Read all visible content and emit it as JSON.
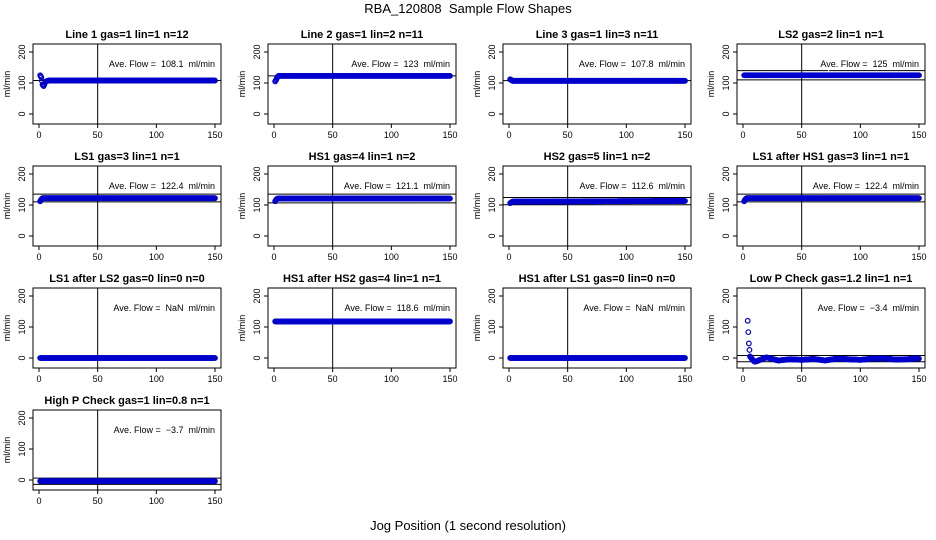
{
  "figure": {
    "title": "RBA_120808  Sample Flow Shapes",
    "x_caption": "Jog Position (1 second resolution)"
  },
  "colors": {
    "points": "#0000cc",
    "axis": "#000000"
  },
  "chart_data": [
    {
      "type": "scatter",
      "title": "Line 1 gas=1 lin=1 n=12",
      "annotation": "Ave. Flow =  108.1  ml/min",
      "ylabel": "ml/min",
      "xlim": [
        0,
        150
      ],
      "ylim": [
        0,
        200
      ],
      "xticks": [
        0,
        50,
        100,
        150
      ],
      "yticks": [
        0,
        100,
        200
      ],
      "vline_x": 50,
      "hlines": [
        108.1
      ],
      "series": [
        {
          "x": [
            1,
            2,
            3,
            4,
            5,
            6,
            8,
            10,
            12,
            15,
            20,
            150
          ],
          "y": [
            125,
            118,
            95,
            90,
            100,
            105,
            108,
            108,
            108,
            108,
            108,
            108
          ]
        }
      ]
    },
    {
      "type": "scatter",
      "title": "Line 2 gas=1 lin=2 n=11",
      "annotation": "Ave. Flow =  123  ml/min",
      "ylabel": "ml/min",
      "xlim": [
        0,
        150
      ],
      "ylim": [
        0,
        200
      ],
      "xticks": [
        0,
        50,
        100,
        150
      ],
      "yticks": [
        0,
        100,
        200
      ],
      "vline_x": 50,
      "hlines": [
        123
      ],
      "series": [
        {
          "x": [
            1,
            2,
            3,
            4,
            6,
            150
          ],
          "y": [
            105,
            112,
            120,
            123,
            123,
            123
          ]
        }
      ]
    },
    {
      "type": "scatter",
      "title": "Line 3 gas=1 lin=3 n=11",
      "annotation": "Ave. Flow =  107.8  ml/min",
      "ylabel": "ml/min",
      "xlim": [
        0,
        150
      ],
      "ylim": [
        0,
        200
      ],
      "xticks": [
        0,
        50,
        100,
        150
      ],
      "yticks": [
        0,
        100,
        200
      ],
      "vline_x": 50,
      "hlines": [
        107.8
      ],
      "series": [
        {
          "x": [
            1,
            3,
            150
          ],
          "y": [
            112,
            107,
            107
          ]
        }
      ]
    },
    {
      "type": "scatter",
      "title": "LS2 gas=2 lin=1 n=1",
      "annotation": "Ave. Flow =  125  ml/min",
      "ylabel": "ml/min",
      "xlim": [
        0,
        150
      ],
      "ylim": [
        0,
        200
      ],
      "xticks": [
        0,
        50,
        100,
        150
      ],
      "yticks": [
        0,
        100,
        200
      ],
      "vline_x": 50,
      "hlines": [
        140,
        110
      ],
      "series": [
        {
          "x": [
            1,
            150
          ],
          "y": [
            125,
            125
          ]
        }
      ]
    },
    {
      "type": "scatter",
      "title": "LS1 gas=3 lin=1 n=1",
      "annotation": "Ave. Flow =  122.4  ml/min",
      "ylabel": "ml/min",
      "xlim": [
        0,
        150
      ],
      "ylim": [
        0,
        200
      ],
      "xticks": [
        0,
        50,
        100,
        150
      ],
      "yticks": [
        0,
        100,
        200
      ],
      "vline_x": 50,
      "hlines": [
        135,
        110
      ],
      "series": [
        {
          "x": [
            1,
            2,
            3,
            150
          ],
          "y": [
            112,
            118,
            122,
            122
          ]
        }
      ]
    },
    {
      "type": "scatter",
      "title": "HS1 gas=4 lin=1 n=2",
      "annotation": "Ave. Flow =  121.1  ml/min",
      "ylabel": "ml/min",
      "xlim": [
        0,
        150
      ],
      "ylim": [
        0,
        200
      ],
      "xticks": [
        0,
        50,
        100,
        150
      ],
      "yticks": [
        0,
        100,
        200
      ],
      "vline_x": 50,
      "hlines": [
        135,
        107
      ],
      "series": [
        {
          "x": [
            1,
            2,
            3,
            150
          ],
          "y": [
            112,
            118,
            121,
            121
          ]
        }
      ]
    },
    {
      "type": "scatter",
      "title": "HS2 gas=5 lin=1 n=2",
      "annotation": "Ave. Flow =  112.6  ml/min",
      "ylabel": "ml/min",
      "xlim": [
        0,
        150
      ],
      "ylim": [
        0,
        200
      ],
      "xticks": [
        0,
        50,
        100,
        150
      ],
      "yticks": [
        0,
        100,
        200
      ],
      "vline_x": 50,
      "hlines": [
        124,
        101
      ],
      "series": [
        {
          "x": [
            1,
            3,
            150
          ],
          "y": [
            106,
            111,
            113
          ]
        }
      ]
    },
    {
      "type": "scatter",
      "title": "LS1 after HS1 gas=3 lin=1 n=1",
      "annotation": "Ave. Flow =  122.4  ml/min",
      "ylabel": "ml/min",
      "xlim": [
        0,
        150
      ],
      "ylim": [
        0,
        200
      ],
      "xticks": [
        0,
        50,
        100,
        150
      ],
      "yticks": [
        0,
        100,
        200
      ],
      "vline_x": 50,
      "hlines": [
        135,
        110
      ],
      "series": [
        {
          "x": [
            1,
            2,
            3,
            150
          ],
          "y": [
            112,
            118,
            122,
            122
          ]
        }
      ]
    },
    {
      "type": "scatter",
      "title": "LS1 after LS2 gas=0 lin=0 n=0",
      "annotation": "Ave. Flow =  NaN  ml/min",
      "ylabel": "ml/min",
      "xlim": [
        0,
        150
      ],
      "ylim": [
        0,
        200
      ],
      "xticks": [
        0,
        50,
        100,
        150
      ],
      "yticks": [
        0,
        100,
        200
      ],
      "vline_x": 50,
      "hlines": [],
      "series": [
        {
          "x": [
            1,
            150
          ],
          "y": [
            0,
            0
          ]
        }
      ]
    },
    {
      "type": "scatter",
      "title": "HS1 after HS2 gas=4 lin=1 n=1",
      "annotation": "Ave. Flow =  118.6  ml/min",
      "ylabel": "ml/min",
      "xlim": [
        0,
        150
      ],
      "ylim": [
        0,
        200
      ],
      "xticks": [
        0,
        50,
        100,
        150
      ],
      "yticks": [
        0,
        100,
        200
      ],
      "vline_x": 50,
      "hlines": [],
      "series": [
        {
          "x": [
            1,
            150
          ],
          "y": [
            118,
            118
          ]
        }
      ]
    },
    {
      "type": "scatter",
      "title": "HS1 after LS1 gas=0 lin=0 n=0",
      "annotation": "Ave. Flow =  NaN  ml/min",
      "ylabel": "ml/min",
      "xlim": [
        0,
        150
      ],
      "ylim": [
        0,
        200
      ],
      "xticks": [
        0,
        50,
        100,
        150
      ],
      "yticks": [
        0,
        100,
        200
      ],
      "vline_x": 50,
      "hlines": [],
      "series": [
        {
          "x": [
            1,
            150
          ],
          "y": [
            0,
            0
          ]
        }
      ]
    },
    {
      "type": "scatter",
      "title": "Low P Check gas=1.2 lin=1 n=1",
      "annotation": "Ave. Flow =  −3.4  ml/min",
      "ylabel": "ml/min",
      "xlim": [
        0,
        150
      ],
      "ylim": [
        0,
        200
      ],
      "xticks": [
        0,
        50,
        100,
        150
      ],
      "yticks": [
        0,
        100,
        200
      ],
      "vline_x": 50,
      "hlines": [
        8,
        -12
      ],
      "series": [
        {
          "x": [
            4,
            5,
            6,
            8,
            10,
            12,
            15,
            20,
            25,
            30,
            40,
            50,
            60,
            70,
            80,
            90,
            100,
            110,
            120,
            130,
            140,
            148,
            150
          ],
          "y": [
            120,
            47,
            5,
            -5,
            -12,
            -10,
            -5,
            2,
            -3,
            -8,
            -4,
            -6,
            -3,
            -8,
            -2,
            -4,
            -6,
            -2,
            -1,
            -5,
            -4,
            -1,
            -2
          ]
        }
      ]
    },
    {
      "type": "scatter",
      "title": "High P Check gas=1 lin=0.8 n=1",
      "annotation": "Ave. Flow =  −3.7  ml/min",
      "ylabel": "ml/min",
      "xlim": [
        0,
        150
      ],
      "ylim": [
        0,
        200
      ],
      "xticks": [
        0,
        50,
        100,
        150
      ],
      "yticks": [
        0,
        100,
        200
      ],
      "vline_x": 50,
      "hlines": [
        6,
        -14
      ],
      "series": [
        {
          "x": [
            1,
            150
          ],
          "y": [
            -3.7,
            -3.7
          ]
        }
      ]
    }
  ]
}
